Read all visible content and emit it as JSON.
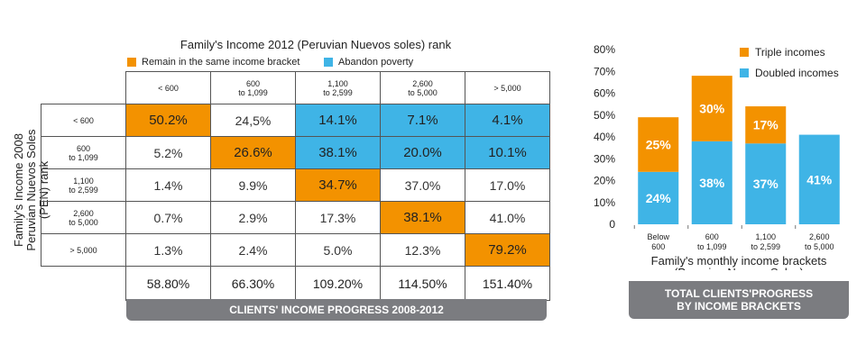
{
  "matrix": {
    "title": "Family's Income 2012 (Peruvian Nuevos soles) rank",
    "legend": [
      {
        "label": "Remain in the same income bracket",
        "color": "#f39200"
      },
      {
        "label": "Abandon poverty",
        "color": "#3fb4e6"
      }
    ],
    "y_axis_label_1": "Family's Income 2008",
    "y_axis_label_2": "Peruvian Nuevos Soles  (PEN) rank",
    "col_headers": [
      {
        "l1": "< 600",
        "l2": ""
      },
      {
        "l1": "600",
        "l2": "to 1,099"
      },
      {
        "l1": "1,100",
        "l2": "to 2,599"
      },
      {
        "l1": "2,600",
        "l2": "to 5,000"
      },
      {
        "l1": "> 5,000",
        "l2": ""
      }
    ],
    "row_headers": [
      {
        "l1": "< 600",
        "l2": ""
      },
      {
        "l1": "600",
        "l2": "to 1,099"
      },
      {
        "l1": "1,100",
        "l2": "to 2,599"
      },
      {
        "l1": "2,600",
        "l2": "to 5,000"
      },
      {
        "l1": "> 5,000",
        "l2": ""
      }
    ],
    "rows": [
      [
        "50.2%",
        "24,5%",
        "14.1%",
        "7.1%",
        "4.1%"
      ],
      [
        "5.2%",
        "26.6%",
        "38.1%",
        "20.0%",
        "10.1%"
      ],
      [
        "1.4%",
        "9.9%",
        "34.7%",
        "37.0%",
        "17.0%"
      ],
      [
        "0.7%",
        "2.9%",
        "17.3%",
        "38.1%",
        "41.0%"
      ],
      [
        "1.3%",
        "2.4%",
        "5.0%",
        "12.3%",
        "79.2%"
      ]
    ],
    "cell_status": [
      [
        "orange",
        "none",
        "blue",
        "blue",
        "blue"
      ],
      [
        "none",
        "orange",
        "blue",
        "blue",
        "blue"
      ],
      [
        "none",
        "none",
        "orange",
        "none",
        "none"
      ],
      [
        "none",
        "none",
        "none",
        "orange",
        "none"
      ],
      [
        "none",
        "none",
        "none",
        "none",
        "orange"
      ]
    ],
    "totals": [
      "58.80%",
      "66.30%",
      "109.20%",
      "114.50%",
      "151.40%"
    ],
    "banner": "CLIENTS' INCOME PROGRESS 2008-2012"
  },
  "chart_data": {
    "type": "bar",
    "stacked": true,
    "categories": [
      {
        "l1": "Below",
        "l2": "600"
      },
      {
        "l1": "600",
        "l2": "to 1,099"
      },
      {
        "l1": "1,100",
        "l2": "to 2,599"
      },
      {
        "l1": "2,600",
        "l2": "to 5,000"
      }
    ],
    "series": [
      {
        "name": "Doubled incomes",
        "color": "#3fb4e6",
        "values": [
          24,
          38,
          37,
          41
        ],
        "labels": [
          "24%",
          "38%",
          "37%",
          "41%"
        ]
      },
      {
        "name": "Triple incomes",
        "color": "#f39200",
        "values": [
          25,
          30,
          17,
          null
        ],
        "labels": [
          "25%",
          "30%",
          "17%",
          ""
        ]
      }
    ],
    "y_ticks": [
      "0",
      "10%",
      "20%",
      "30%",
      "40%",
      "50%",
      "60%",
      "70%",
      "80%"
    ],
    "ylim": [
      0,
      80
    ],
    "xlabel_1": "Family's monthly income brackets",
    "xlabel_2": "(Peruvian Nuevos Soles)",
    "legend_position": "top-right",
    "banner_1": "TOTAL CLIENTS'PROGRESS",
    "banner_2": "BY INCOME BRACKETS"
  }
}
